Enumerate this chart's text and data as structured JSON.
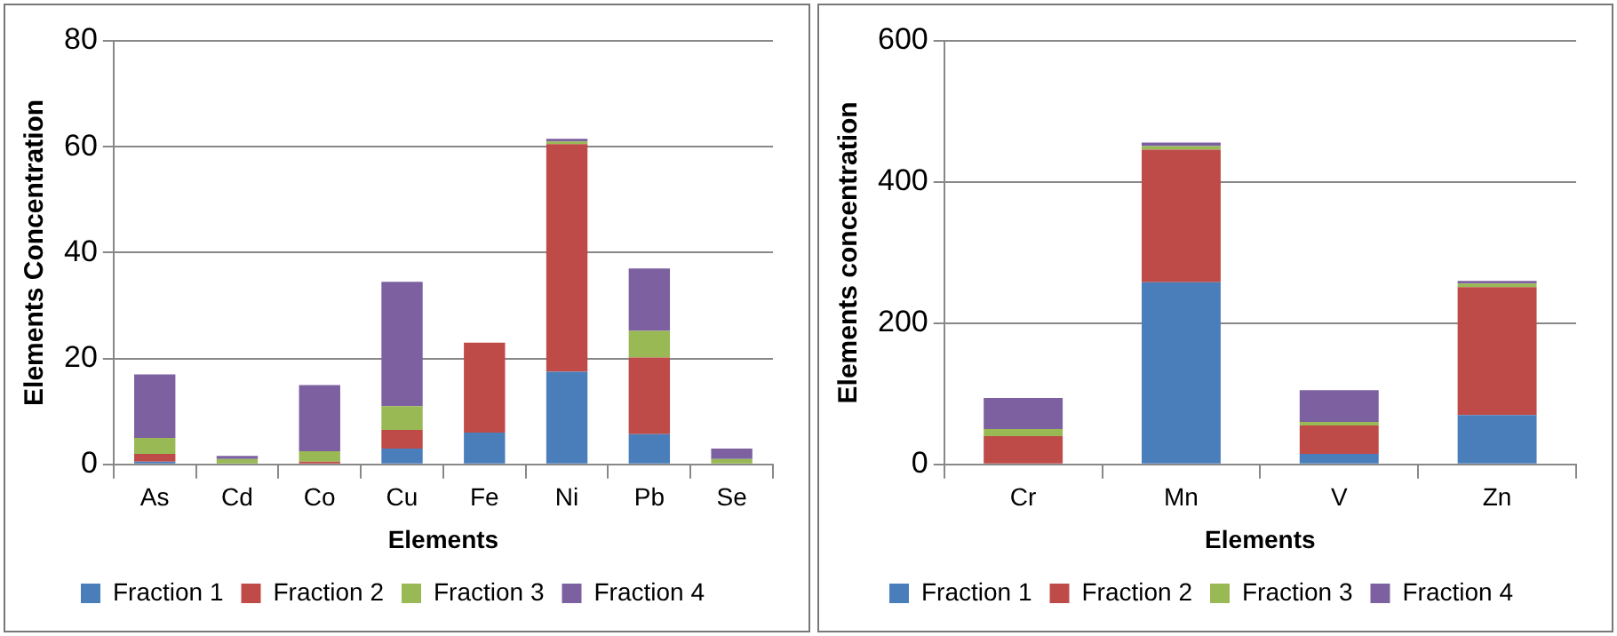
{
  "chart_data": [
    {
      "type": "bar",
      "stacked": true,
      "categories": [
        "As",
        "Cd",
        "Co",
        "Cu",
        "Fe",
        "Ni",
        "Pb",
        "Se"
      ],
      "xlabel": "Elements",
      "ylabel": "Elements Concentration",
      "ylim": [
        0,
        80
      ],
      "yticks": [
        0,
        20,
        40,
        60,
        80
      ],
      "grid": "y",
      "legend": "bottom",
      "series": [
        {
          "name": "Fraction 1",
          "color": "#4a7ebb",
          "values": [
            0.5,
            0,
            null,
            3,
            6,
            17.5,
            5.7,
            0
          ]
        },
        {
          "name": "Fraction 2",
          "color": "#be4b48",
          "values": [
            1.5,
            null,
            0.5,
            3.5,
            17,
            43,
            14.5,
            null
          ]
        },
        {
          "name": "Fraction 3",
          "color": "#98b954",
          "values": [
            3,
            1,
            2,
            4.5,
            0,
            0.5,
            5,
            1
          ]
        },
        {
          "name": "Fraction 4",
          "color": "#7d60a0",
          "values": [
            12,
            0.6,
            12.5,
            23.5,
            0,
            0.5,
            11.8,
            2
          ]
        }
      ]
    },
    {
      "type": "bar",
      "stacked": true,
      "categories": [
        "Cr",
        "Mn",
        "V",
        "Zn"
      ],
      "xlabel": "Elements",
      "ylabel": "Elements concentration",
      "ylim": [
        0,
        600
      ],
      "yticks": [
        0,
        200,
        400,
        600
      ],
      "grid": "y",
      "legend": "bottom",
      "series": [
        {
          "name": "Fraction 1",
          "color": "#4a7ebb",
          "values": [
            0,
            258,
            15,
            70
          ]
        },
        {
          "name": "Fraction 2",
          "color": "#be4b48",
          "values": [
            40,
            188,
            40,
            181
          ]
        },
        {
          "name": "Fraction 3",
          "color": "#98b954",
          "values": [
            10,
            5,
            5,
            5
          ]
        },
        {
          "name": "Fraction 4",
          "color": "#7d60a0",
          "values": [
            44,
            5,
            45,
            4
          ]
        }
      ]
    }
  ]
}
